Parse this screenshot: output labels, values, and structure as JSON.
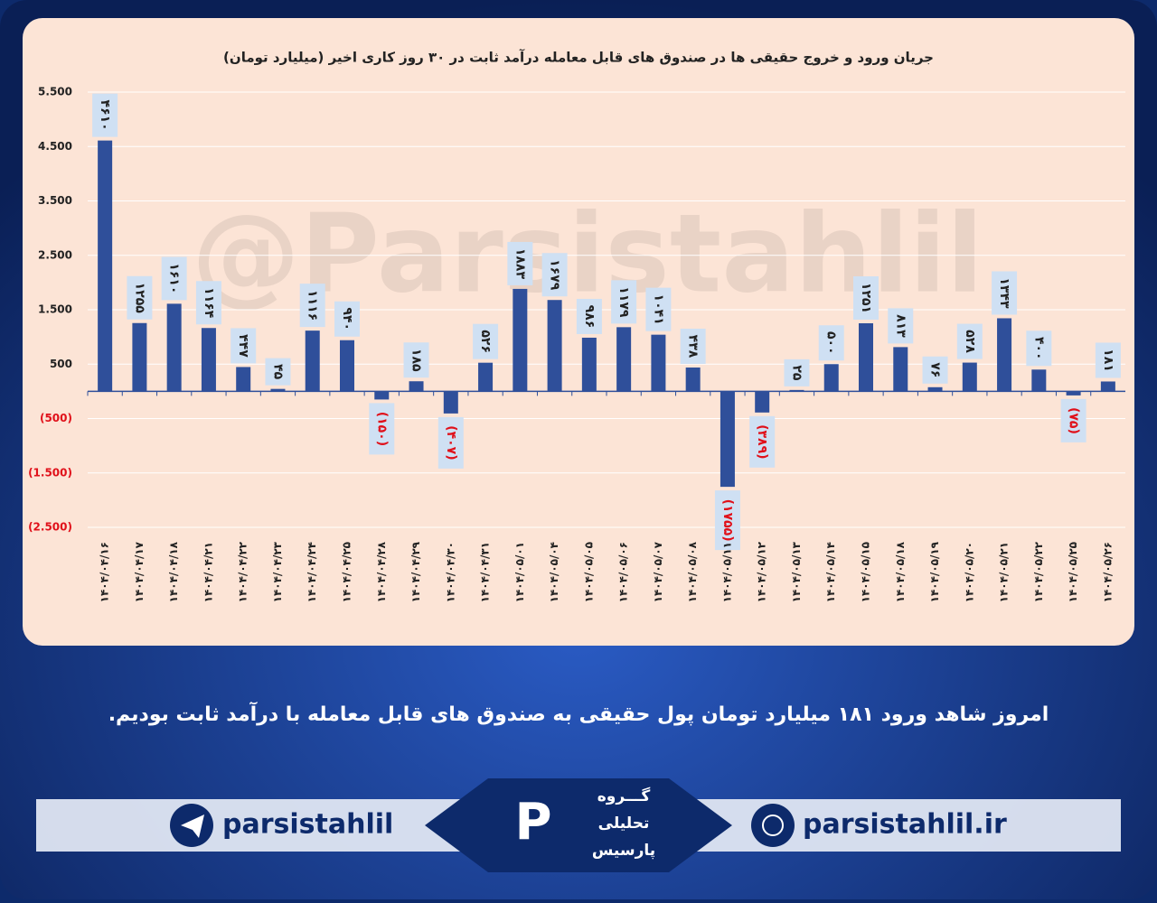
{
  "watermark": "@Parsistahlil",
  "chart_data": {
    "type": "bar",
    "title": "جریان ورود و خروج حقیقی ها در صندوق های قابل معامله درآمد ثابت در ۳۰ روز کاری اخیر (میلیارد تومان)",
    "categories": [
      "۱۴۰۴/۰۴/۱۶",
      "۱۴۰۴/۰۴/۱۷",
      "۱۴۰۴/۰۴/۱۸",
      "۱۴۰۴/۰۴/۲۱",
      "۱۴۰۴/۰۴/۲۲",
      "۱۴۰۴/۰۴/۲۳",
      "۱۴۰۴/۰۴/۲۴",
      "۱۴۰۴/۰۴/۲۵",
      "۱۴۰۴/۰۴/۲۸",
      "۱۴۰۴/۰۴/۲۹",
      "۱۴۰۴/۰۴/۳۰",
      "۱۴۰۴/۰۴/۳۱",
      "۱۴۰۴/۰۵/۰۱",
      "۱۴۰۴/۰۵/۰۴",
      "۱۴۰۴/۰۵/۰۵",
      "۱۴۰۴/۰۵/۰۶",
      "۱۴۰۴/۰۵/۰۷",
      "۱۴۰۴/۰۵/۰۸",
      "۱۴۰۴/۰۵/۱۱",
      "۱۴۰۴/۰۵/۱۲",
      "۱۴۰۴/۰۵/۱۳",
      "۱۴۰۴/۰۵/۱۴",
      "۱۴۰۴/۰۵/۱۵",
      "۱۴۰۴/۰۵/۱۸",
      "۱۴۰۴/۰۵/۱۹",
      "۱۴۰۴/۰۵/۲۰",
      "۱۴۰۴/۰۵/۲۱",
      "۱۴۰۴/۰۵/۲۲",
      "۱۴۰۴/۰۵/۲۵",
      "۱۴۰۴/۰۵/۲۶"
    ],
    "values": [
      4610,
      1255,
      1610,
      1164,
      447,
      45,
      1116,
      940,
      -150,
      185,
      -407,
      526,
      1883,
      1679,
      986,
      1179,
      1041,
      438,
      -1755,
      -389,
      25,
      500,
      1251,
      813,
      76,
      528,
      1343,
      400,
      -75,
      181
    ],
    "value_labels": [
      "۴۶۱۰",
      "۱۲۵۵",
      "۱۶۱۰",
      "۱۱۶۴",
      "۴۴۷",
      "۴۵",
      "۱۱۱۶",
      "۹۴۰",
      "(۱۵۰)",
      "۱۸۵",
      "(۴۰۷)",
      "۵۲۶",
      "۱۸۸۳",
      "۱۶۷۹",
      "۹۸۶",
      "۱۱۷۹",
      "۱۰۴۱",
      "۴۳۸",
      "(۱۷۵۵)",
      "(۳۸۹)",
      "۲۵",
      "۵۰۰",
      "۱۲۵۱",
      "۸۱۳",
      "۷۶",
      "۵۲۸",
      "۱۳۴۳",
      "۴۰۰",
      "(۷۵)",
      "۱۸۱"
    ],
    "color": "#2f4f9a",
    "negative_label_color": "#e0101a",
    "ylim": [
      -2500,
      5500
    ],
    "yticks": [
      {
        "value": 5500,
        "label": "5.500"
      },
      {
        "value": 4500,
        "label": "4.500"
      },
      {
        "value": 3500,
        "label": "3.500"
      },
      {
        "value": 2500,
        "label": "2.500"
      },
      {
        "value": 1500,
        "label": "1.500"
      },
      500,
      {
        "value": -500,
        "label": "(500)"
      },
      {
        "value": -1500,
        "label": "(1.500)"
      },
      {
        "value": -2500,
        "label": "(2.500)"
      }
    ],
    "grid": true
  },
  "caption": "امروز شاهد ورود ۱۸۱ میلیارد تومان پول حقیقی به صندوق های قابل معامله با درآمد ثابت بودیم.",
  "footer": {
    "telegram": "parsistahlil",
    "website": "parsistahlil.ir",
    "logo_lines": [
      "گـــروه",
      "تحلیلی",
      "پارسیس"
    ]
  }
}
